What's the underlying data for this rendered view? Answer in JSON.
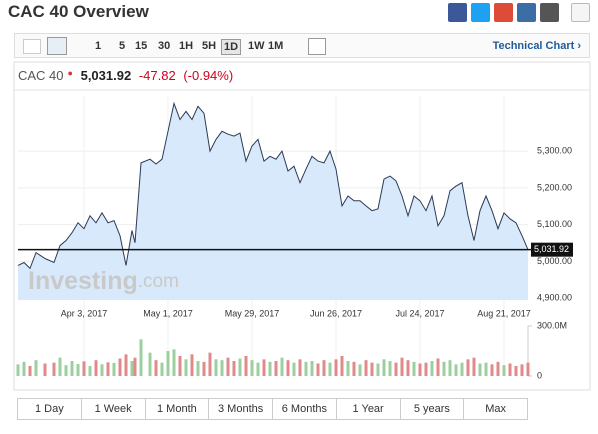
{
  "header": {
    "title": "CAC 40 Overview"
  },
  "toolbar": {
    "intervals": [
      "1",
      "5",
      "15",
      "30",
      "1H",
      "5H",
      "1D",
      "1W",
      "1M"
    ],
    "link": "Technical Chart ›"
  },
  "quote": {
    "name": "CAC 40",
    "price": "5,031.92",
    "change": "-47.82",
    "change_pct": "(-0.94%)"
  },
  "range_tabs": [
    "1 Day",
    "1 Week",
    "1 Month",
    "3 Months",
    "6 Months",
    "1 Year",
    "5 years",
    "Max"
  ],
  "chart_data": {
    "type": "line",
    "watermark_brand": "Investing",
    "watermark_suffix": ".com",
    "x": [
      "2017-03-12",
      "2017-03-14",
      "2017-03-16",
      "2017-03-18",
      "2017-03-21",
      "2017-03-24",
      "2017-03-26",
      "2017-03-28",
      "2017-03-30",
      "2017-04-01",
      "2017-04-03",
      "2017-04-05",
      "2017-04-07",
      "2017-04-09",
      "2017-04-11",
      "2017-04-13",
      "2017-04-15",
      "2017-04-17",
      "2017-04-19",
      "2017-04-20",
      "2017-04-22",
      "2017-04-25",
      "2017-04-27",
      "2017-04-29",
      "2017-05-01",
      "2017-05-03",
      "2017-05-05",
      "2017-05-07",
      "2017-05-09",
      "2017-05-11",
      "2017-05-13",
      "2017-05-15",
      "2017-05-17",
      "2017-05-19",
      "2017-05-21",
      "2017-05-23",
      "2017-05-25",
      "2017-05-27",
      "2017-05-29",
      "2017-05-31",
      "2017-06-02",
      "2017-06-04",
      "2017-06-06",
      "2017-06-08",
      "2017-06-10",
      "2017-06-12",
      "2017-06-14",
      "2017-06-16",
      "2017-06-18",
      "2017-06-20",
      "2017-06-22",
      "2017-06-24",
      "2017-06-26",
      "2017-06-28",
      "2017-06-30",
      "2017-07-02",
      "2017-07-04",
      "2017-07-06",
      "2017-07-08",
      "2017-07-10",
      "2017-07-12",
      "2017-07-14",
      "2017-07-16",
      "2017-07-18",
      "2017-07-20",
      "2017-07-22",
      "2017-07-24",
      "2017-07-26",
      "2017-07-28",
      "2017-07-30",
      "2017-08-01",
      "2017-08-03",
      "2017-08-05",
      "2017-08-07",
      "2017-08-09",
      "2017-08-11",
      "2017-08-13",
      "2017-08-15",
      "2017-08-17",
      "2017-08-19",
      "2017-08-21",
      "2017-08-23",
      "2017-08-25",
      "2017-08-27",
      "2017-08-29"
    ],
    "series": [
      {
        "name": "CAC 40",
        "color": "#2b3a55",
        "fill": "#d7e9fb",
        "values": [
          4989,
          4997,
          4981,
          5024,
          5008,
          4997,
          5043,
          5057,
          5078,
          5105,
          5089,
          5124,
          5105,
          5132,
          5105,
          5111,
          5070,
          4989,
          5084,
          5051,
          5268,
          5278,
          5265,
          5278,
          5354,
          5430,
          5386,
          5408,
          5386,
          5422,
          5403,
          5300,
          5332,
          5354,
          5346,
          5341,
          5349,
          5273,
          5314,
          5332,
          5273,
          5286,
          5278,
          5300,
          5246,
          5259,
          5214,
          5251,
          5286,
          5273,
          5268,
          5300,
          5251,
          5151,
          5178,
          5165,
          5165,
          5151,
          5138,
          5143,
          5224,
          5232,
          5219,
          5178,
          5124,
          5178,
          5165,
          5138,
          5178,
          5097,
          5124,
          5192,
          5205,
          5214,
          5124,
          5057,
          5138,
          5178,
          5138,
          5089,
          5132,
          5116,
          5105,
          5070,
          5031.92
        ]
      }
    ],
    "volume": {
      "up_color": "#9ccf9f",
      "down_color": "#e08a8a",
      "values": [
        70000000,
        85000000,
        60000000,
        95000000,
        75000000,
        80000000,
        110000000,
        65000000,
        90000000,
        72000000,
        88000000,
        60000000,
        95000000,
        70000000,
        82000000,
        78000000,
        105000000,
        130000000,
        90000000,
        110000000,
        220000000,
        140000000,
        95000000,
        80000000,
        150000000,
        160000000,
        120000000,
        100000000,
        130000000,
        90000000,
        85000000,
        140000000,
        100000000,
        95000000,
        110000000,
        90000000,
        105000000,
        120000000,
        95000000,
        80000000,
        100000000,
        85000000,
        90000000,
        110000000,
        95000000,
        80000000,
        100000000,
        85000000,
        90000000,
        75000000,
        95000000,
        80000000,
        100000000,
        120000000,
        90000000,
        85000000,
        70000000,
        95000000,
        80000000,
        75000000,
        100000000,
        90000000,
        80000000,
        110000000,
        95000000,
        85000000,
        75000000,
        80000000,
        90000000,
        105000000,
        85000000,
        95000000,
        70000000,
        80000000,
        100000000,
        110000000,
        75000000,
        80000000,
        70000000,
        85000000,
        65000000,
        75000000,
        60000000,
        70000000,
        80000000
      ],
      "ylim": [
        0,
        300000000
      ],
      "yticks": [
        {
          "value": 300000000,
          "label": "300.0M"
        },
        0
      ]
    },
    "last_price": {
      "value": 5031.92,
      "label": "5,031.92"
    },
    "xlim": [
      "2017-03-12",
      "2017-08-29"
    ],
    "xticks": [
      {
        "value": "2017-04-03",
        "label": "Apr 3, 2017"
      },
      {
        "value": "2017-05-01",
        "label": "May 1, 2017"
      },
      {
        "value": "2017-05-29",
        "label": "May 29, 2017"
      },
      {
        "value": "2017-06-26",
        "label": "Jun 26, 2017"
      },
      {
        "value": "2017-07-24",
        "label": "Jul 24, 2017"
      },
      {
        "value": "2017-08-21",
        "label": "Aug 21, 2017"
      }
    ],
    "ylim": [
      4895,
      5450
    ],
    "yticks": [
      {
        "value": 4900,
        "label": "4,900.00"
      },
      {
        "value": 5000,
        "label": "5,000.00"
      },
      {
        "value": 5100,
        "label": "5,100.00"
      },
      {
        "value": 5200,
        "label": "5,200.00"
      },
      {
        "value": 5300,
        "label": "5,300.00"
      }
    ],
    "grid": true
  }
}
